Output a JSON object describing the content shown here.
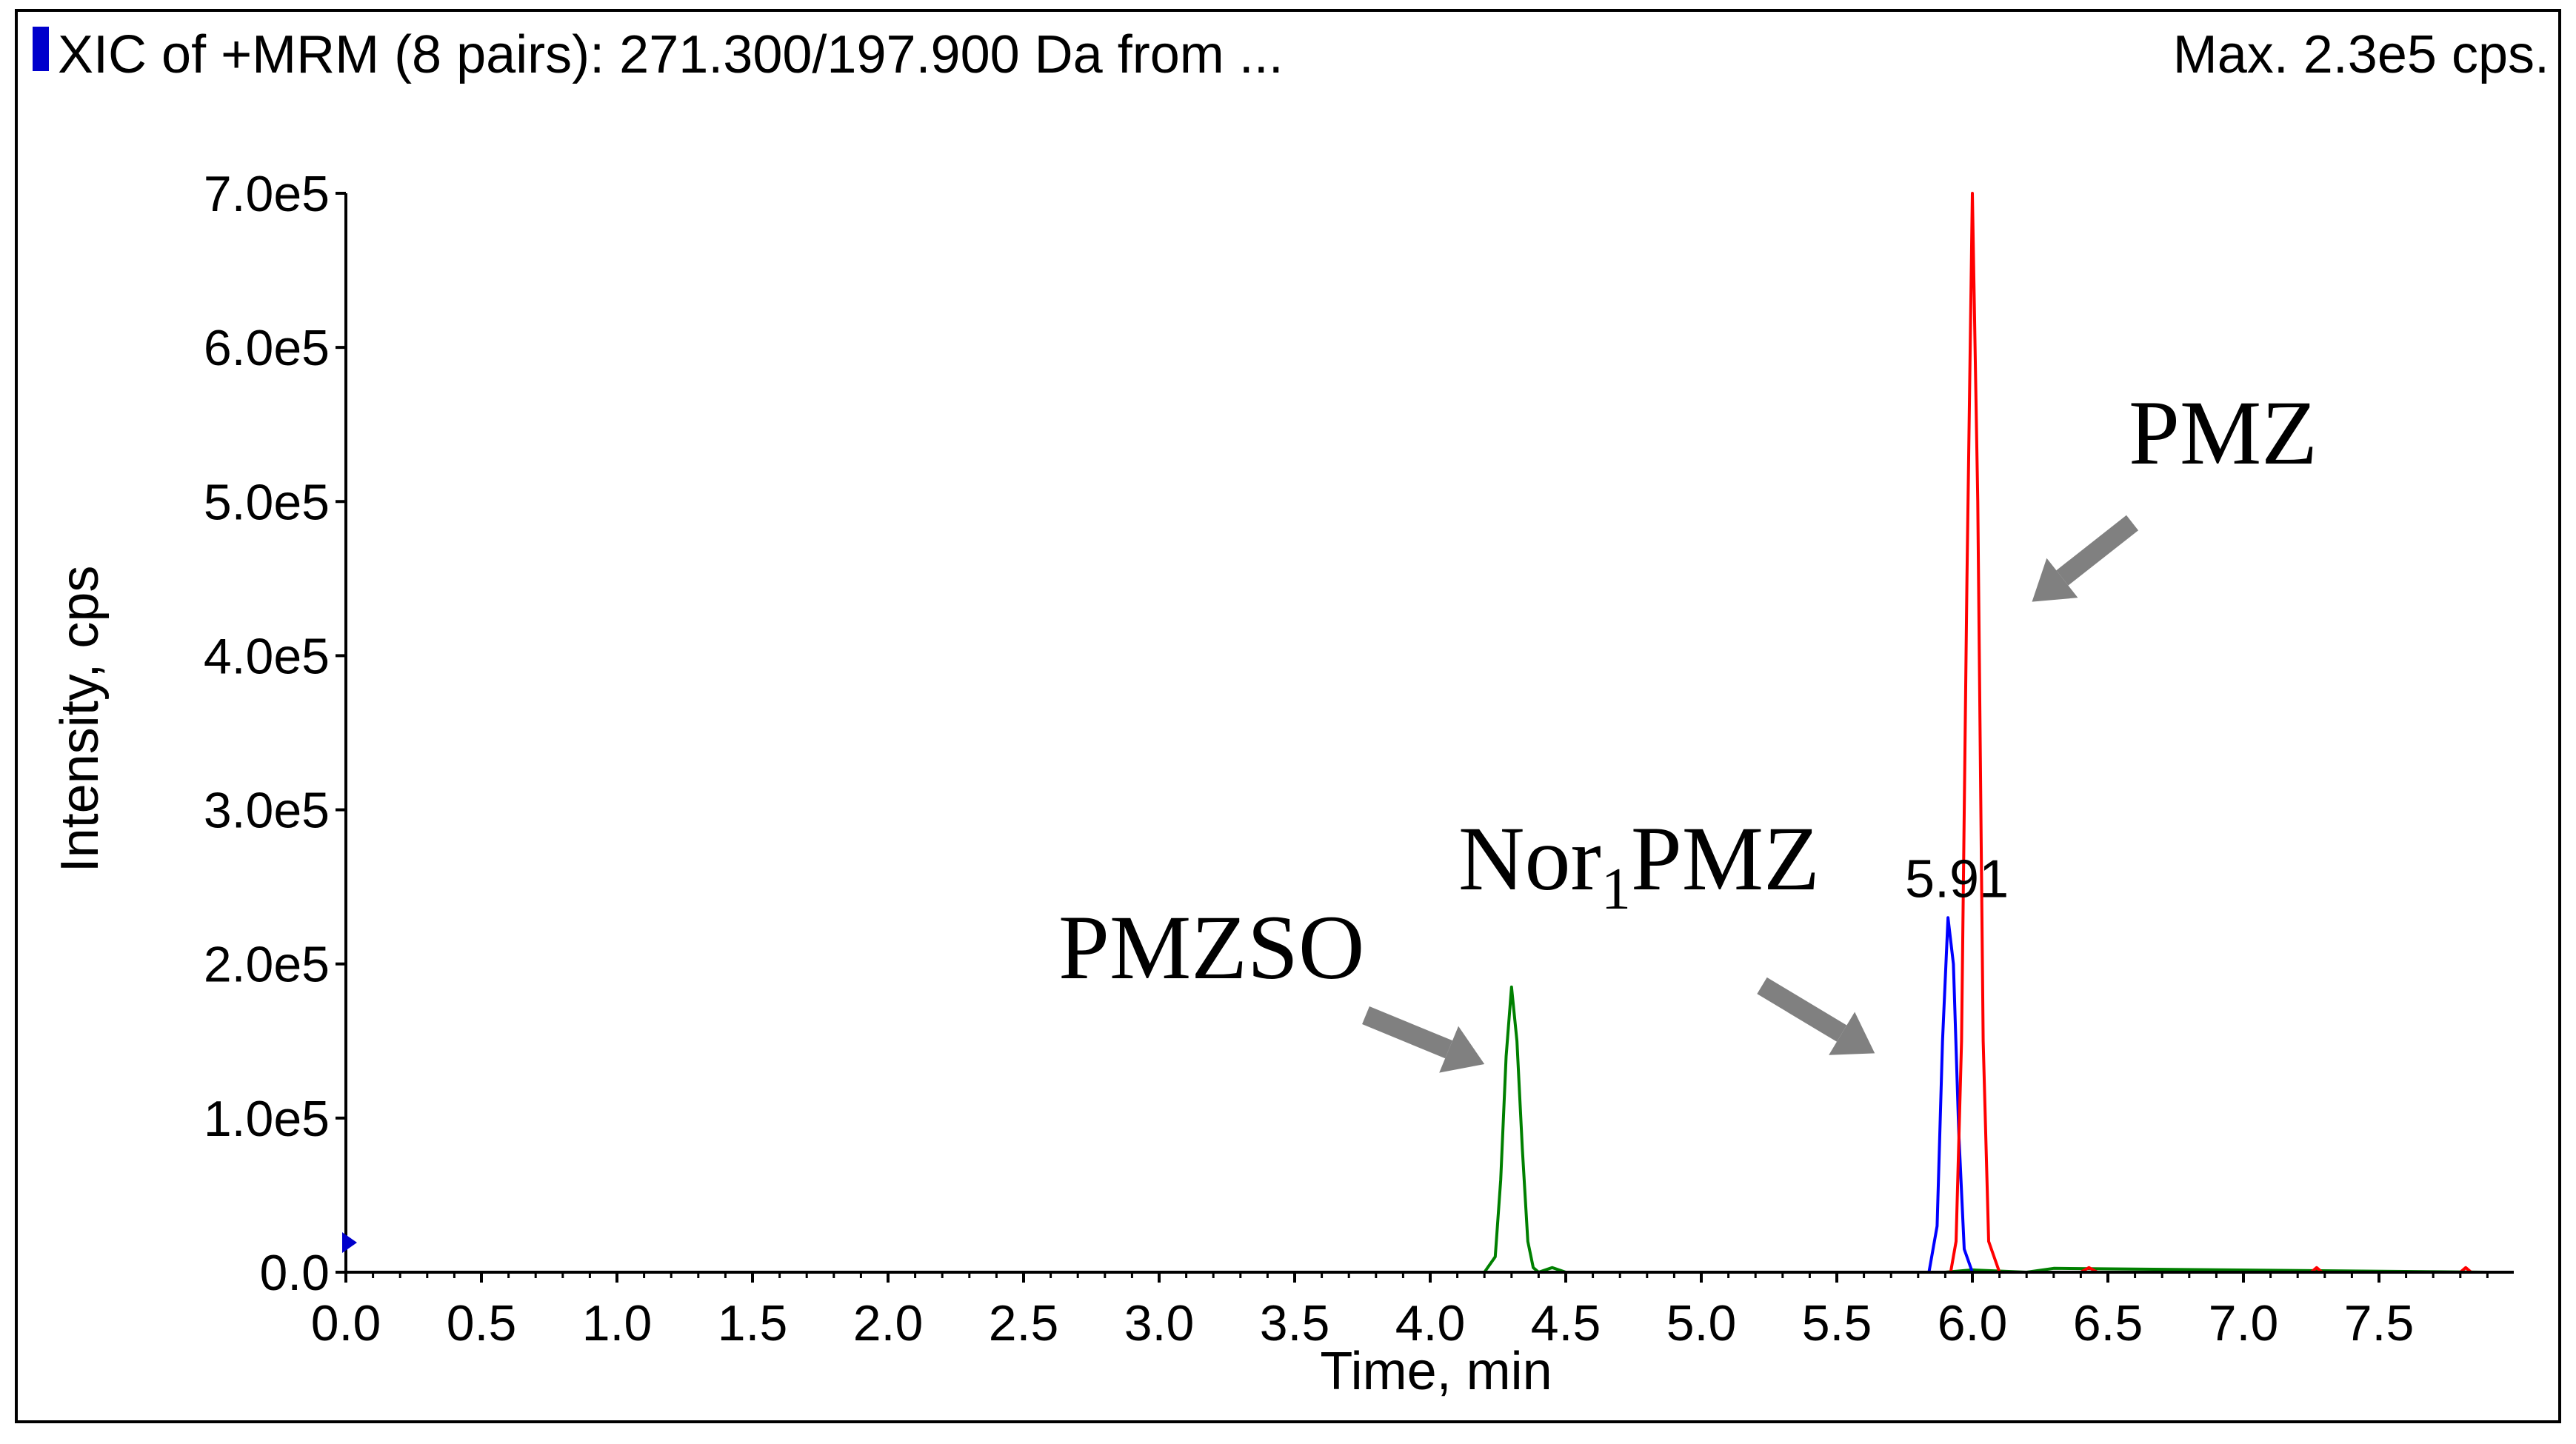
{
  "header": {
    "title": "XIC of +MRM (8 pairs): 271.300/197.900 Da  from ...",
    "max_label": "Max. 2.3e5 cps."
  },
  "chart_data": {
    "type": "line",
    "xlabel": "Time, min",
    "ylabel": "Intensity, cps",
    "xlim": [
      0.0,
      8.0
    ],
    "ylim": [
      0,
      700000
    ],
    "x_ticks": [
      "0.0",
      "0.5",
      "1.0",
      "1.5",
      "2.0",
      "2.5",
      "3.0",
      "3.5",
      "4.0",
      "4.5",
      "5.0",
      "5.5",
      "6.0",
      "6.5",
      "7.0",
      "7.5"
    ],
    "y_ticks": [
      "0.0",
      "1.0e5",
      "2.0e5",
      "3.0e5",
      "4.0e5",
      "5.0e5",
      "6.0e5",
      "7.0e5"
    ],
    "grid": false,
    "series": [
      {
        "color": "#008000",
        "x": [
          0.0,
          4.2,
          4.24,
          4.26,
          4.28,
          4.3,
          4.32,
          4.34,
          4.36,
          4.38,
          4.4,
          4.45,
          4.5,
          5.9,
          6.0,
          6.2,
          6.3,
          7.9
        ],
        "y": [
          0,
          0,
          10000,
          60000,
          140000,
          185000,
          150000,
          80000,
          20000,
          3000,
          0,
          3000,
          0,
          0,
          1500,
          0,
          2500,
          0
        ]
      },
      {
        "color": "#0000ff",
        "x": [
          0.0,
          5.84,
          5.87,
          5.89,
          5.91,
          5.93,
          5.95,
          5.97,
          6.0,
          7.9
        ],
        "y": [
          0,
          0,
          30000,
          150000,
          230000,
          200000,
          90000,
          15000,
          0,
          0
        ]
      },
      {
        "color": "#ff0000",
        "x": [
          0.0,
          5.92,
          5.94,
          5.96,
          5.98,
          6.0,
          6.02,
          6.04,
          6.06,
          6.1,
          6.4,
          6.43,
          6.46,
          7.25,
          7.27,
          7.29,
          7.8,
          7.82,
          7.84,
          7.9
        ],
        "y": [
          0,
          0,
          20000,
          150000,
          450000,
          700000,
          500000,
          150000,
          20000,
          0,
          0,
          3000,
          0,
          0,
          3000,
          0,
          0,
          3000,
          0,
          0
        ]
      }
    ],
    "peak_labels": [
      {
        "text": "5.91",
        "x": 5.91,
        "y": 230000
      }
    ],
    "annotations": [
      {
        "text": "PMZSO",
        "arrow_to": {
          "x": 4.2,
          "y": 135000
        }
      },
      {
        "text": "Nor",
        "sub": "1",
        "suffix": "PMZ",
        "arrow_to": {
          "x": 5.64,
          "y": 142000
        }
      },
      {
        "text": "PMZ",
        "arrow_to": {
          "x": 6.22,
          "y": 435000
        }
      }
    ]
  }
}
